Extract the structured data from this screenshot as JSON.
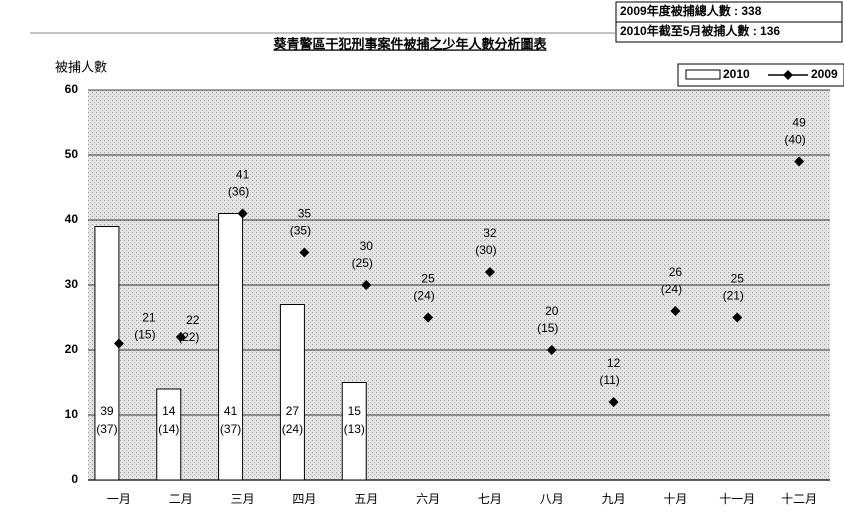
{
  "chart_data": {
    "type": "combo",
    "title": "葵青警區干犯刑事案件被捕之少年人數分析圖表",
    "y_label": "被捕人數",
    "annotations": [
      "2009年度被捕總人數 : 338",
      "2010年截至5月被捕人數 : 136"
    ],
    "categories": [
      "一月",
      "二月",
      "三月",
      "四月",
      "五月",
      "六月",
      "七月",
      "八月",
      "九月",
      "十月",
      "十一月",
      "十二月"
    ],
    "series": [
      {
        "name": "2010",
        "type": "bar",
        "color": "#ffffff",
        "values": [
          39,
          14,
          41,
          27,
          15,
          null,
          null,
          null,
          null,
          null,
          null,
          null
        ],
        "paren_labels": [
          "(37)",
          "(14)",
          "(37)",
          "(24)",
          "(13)",
          null,
          null,
          null,
          null,
          null,
          null,
          null
        ]
      },
      {
        "name": "2009",
        "type": "line",
        "color": "#000000",
        "values": [
          21,
          22,
          41,
          35,
          30,
          25,
          32,
          20,
          12,
          26,
          25,
          49
        ],
        "paren_labels": [
          "(15)",
          "(22)",
          "(36)",
          "(35)",
          "(25)",
          "(24)",
          "(30)",
          "(15)",
          "(11)",
          "(24)",
          "(21)",
          "(40)"
        ]
      }
    ],
    "ylim": [
      0,
      60
    ],
    "yticks": [
      0,
      10,
      20,
      30,
      40,
      50,
      60
    ],
    "grid": true,
    "legend": "top-right"
  }
}
